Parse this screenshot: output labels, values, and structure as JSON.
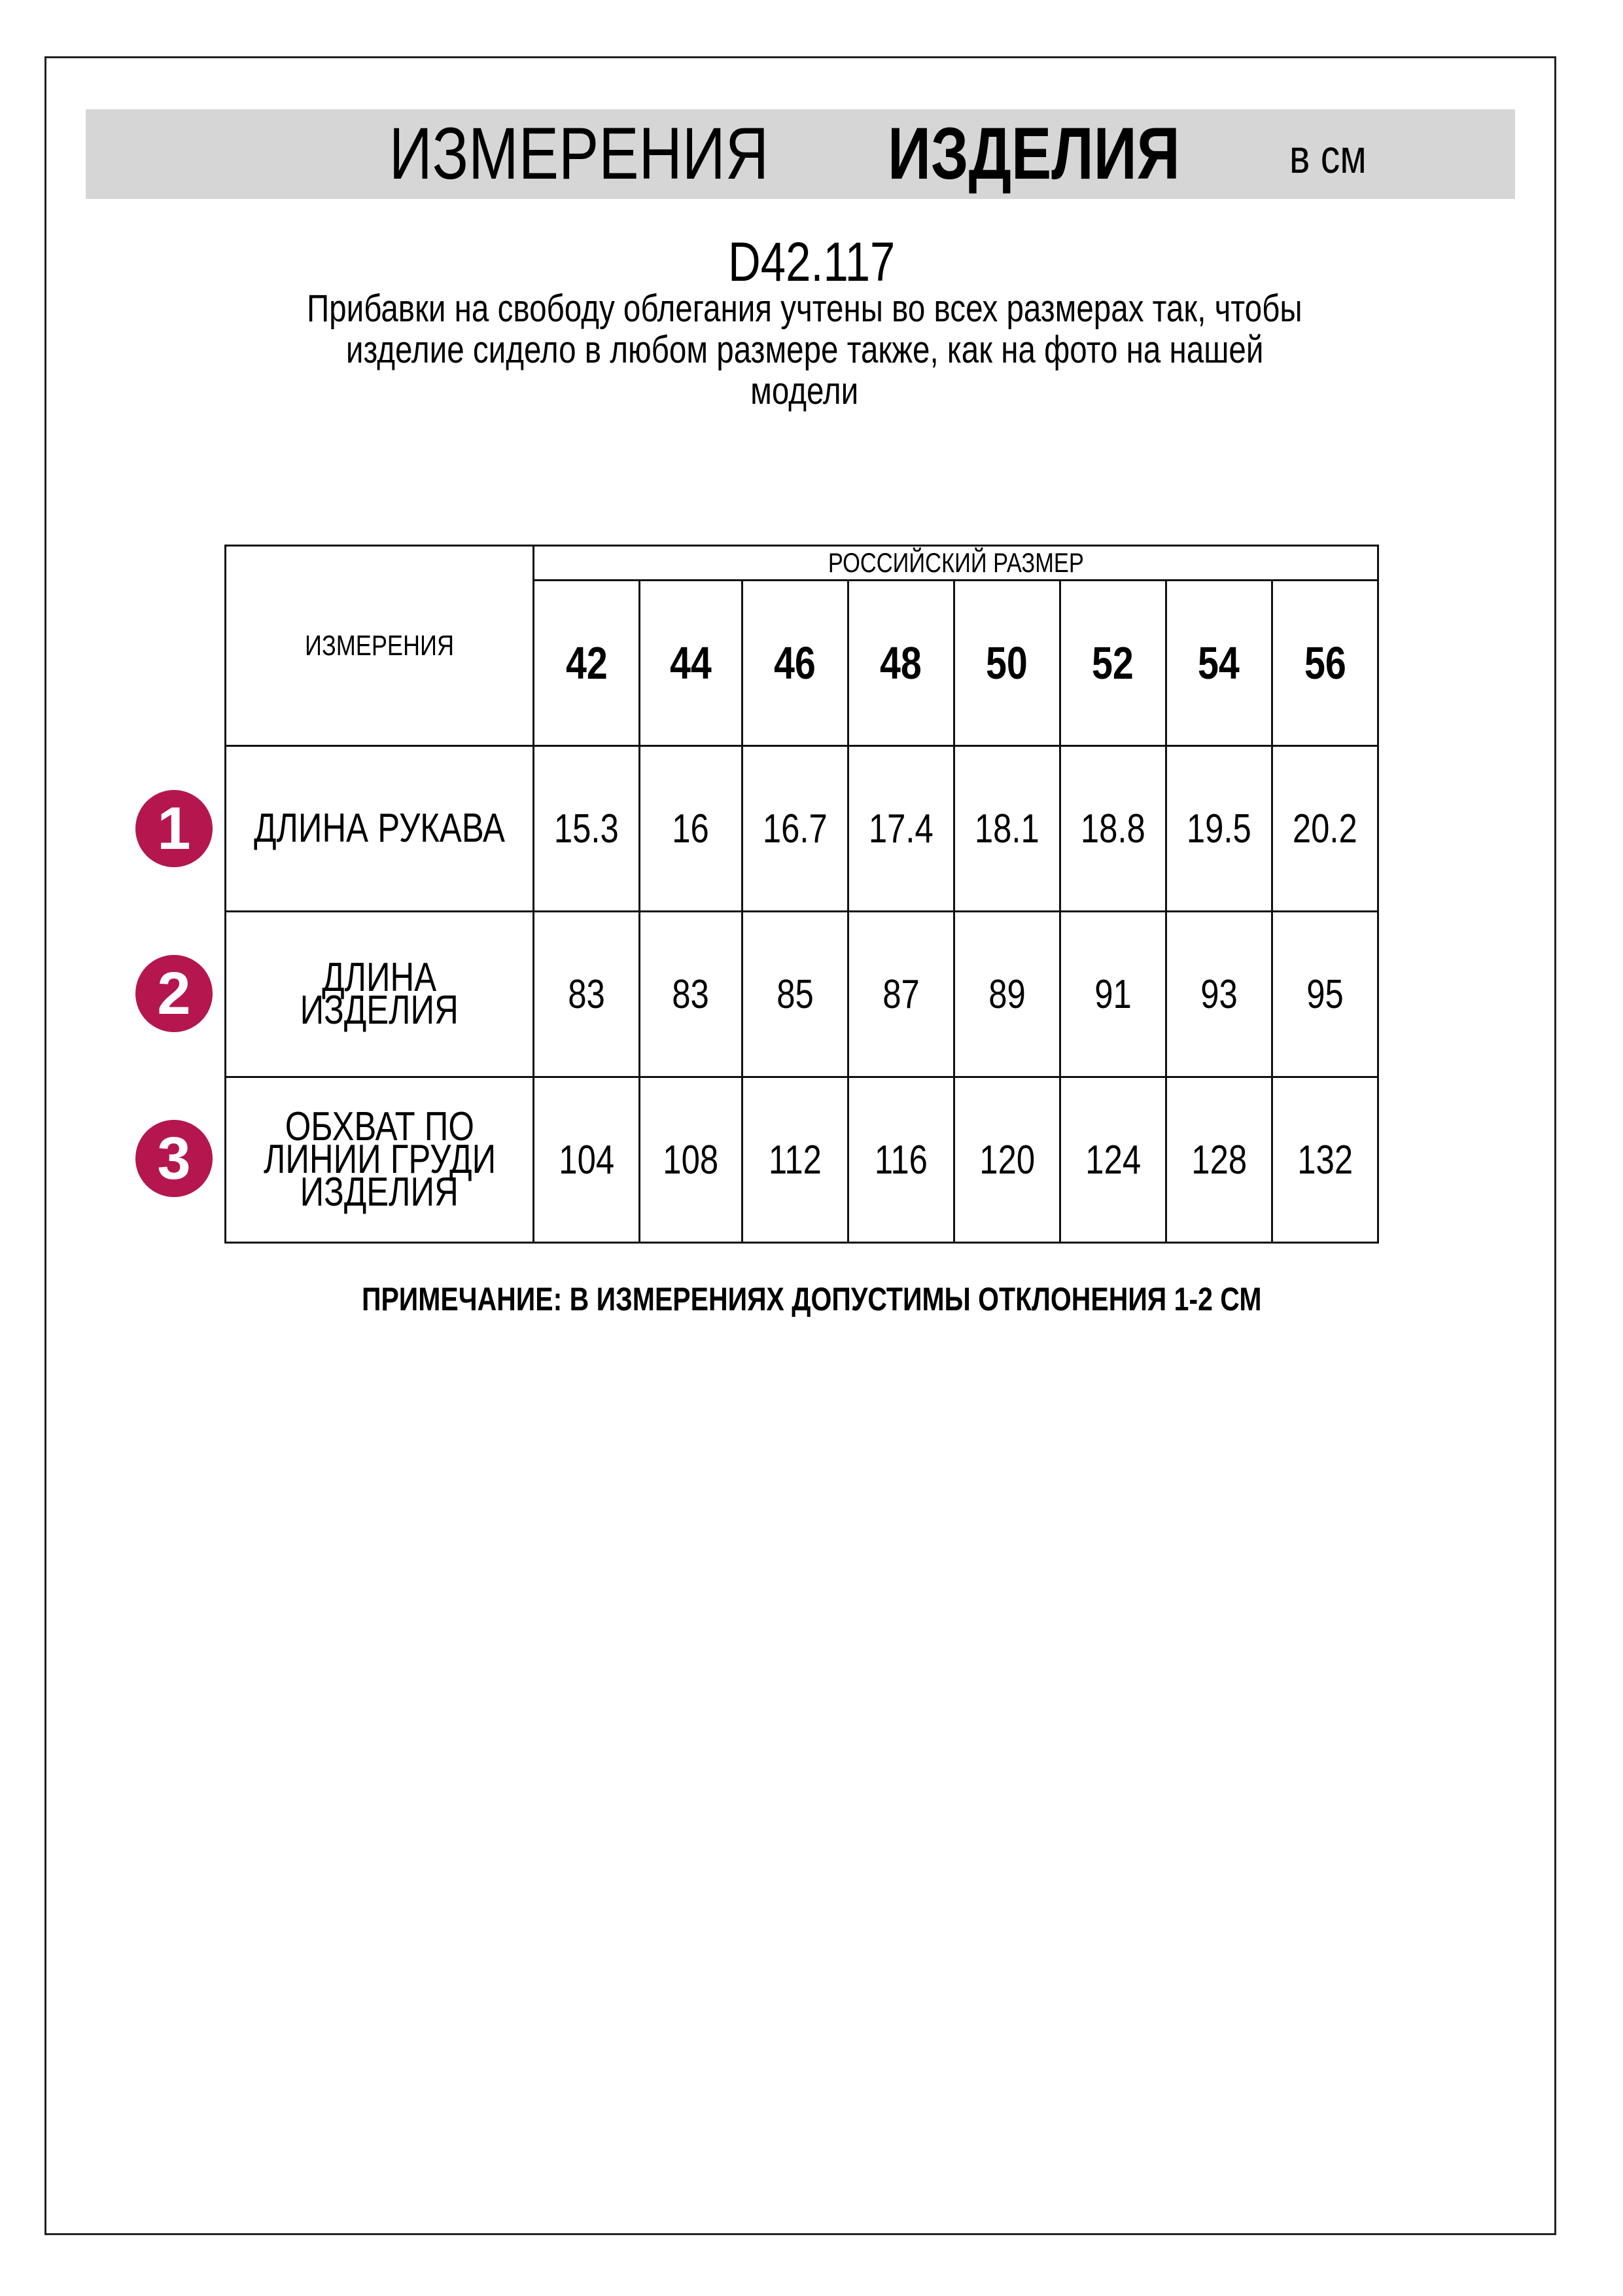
{
  "header": {
    "title_regular": "ИЗМЕРЕНИЯ",
    "title_bold": "ИЗДЕЛИЯ",
    "unit": "в см"
  },
  "product_code": "D42.117",
  "description_lines": [
    "Прибавки на свободу облегания учтены во всех размерах так, чтобы",
    "изделие сидело в любом размере также, как на фото на нашей",
    "модели"
  ],
  "table": {
    "corner_label": "ИЗМЕРЕНИЯ",
    "group_label": "РОССИЙСКИЙ РАЗМЕР",
    "sizes": [
      "42",
      "44",
      "46",
      "48",
      "50",
      "52",
      "54",
      "56"
    ],
    "rows": [
      {
        "number": "1",
        "label_lines": [
          "ДЛИНА РУКАВА"
        ],
        "values": [
          "15.3",
          "16",
          "16.7",
          "17.4",
          "18.1",
          "18.8",
          "19.5",
          "20.2"
        ]
      },
      {
        "number": "2",
        "label_lines": [
          "ДЛИНА",
          "ИЗДЕЛИЯ"
        ],
        "values": [
          "83",
          "83",
          "85",
          "87",
          "89",
          "91",
          "93",
          "95"
        ]
      },
      {
        "number": "3",
        "label_lines": [
          "ОБХВАТ ПО",
          "ЛИНИИ ГРУДИ",
          "ИЗДЕЛИЯ"
        ],
        "values": [
          "104",
          "108",
          "112",
          "116",
          "120",
          "124",
          "128",
          "132"
        ]
      }
    ]
  },
  "note": "ПРИМЕЧАНИЕ: В ИЗМЕРЕНИЯХ ДОПУСТИМЫ ОТКЛОНЕНИЯ 1-2 СМ",
  "colors": {
    "badge": "#b5164e",
    "header_band": "#d6d6d6"
  }
}
